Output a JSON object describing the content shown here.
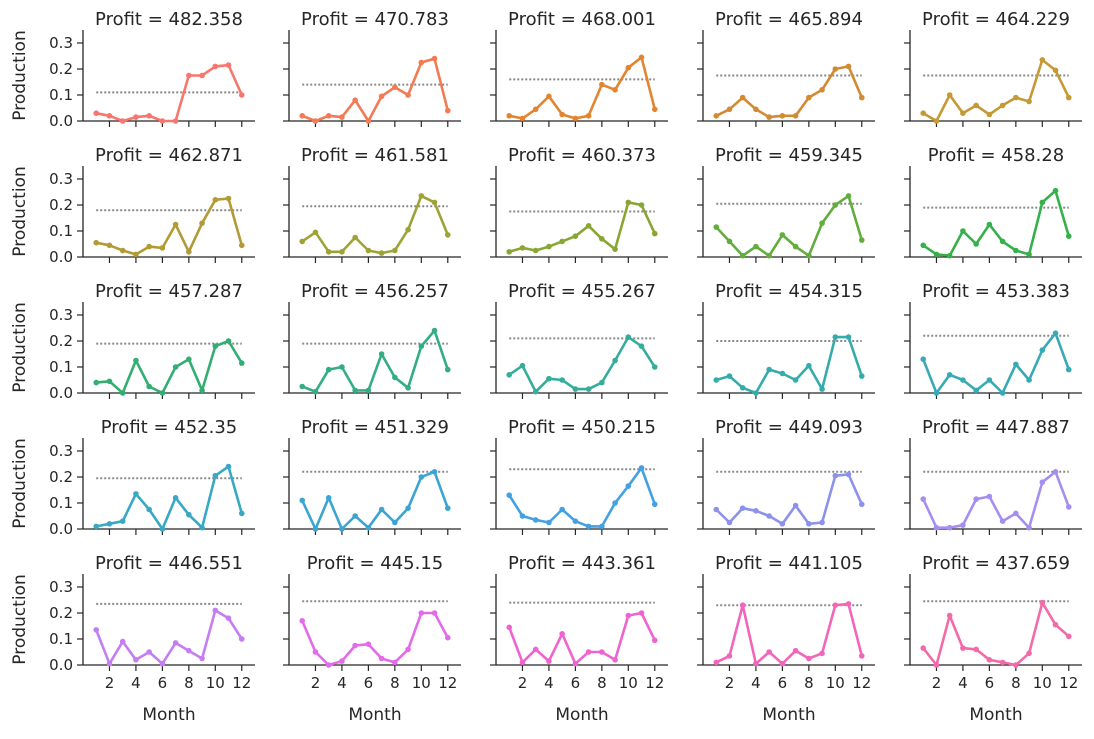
{
  "chart_data": {
    "type": "line",
    "xlabel": "Month",
    "ylabel": "Production",
    "title_prefix": "Profit = ",
    "xlim": [
      0,
      13
    ],
    "ylim": [
      0,
      0.35
    ],
    "xticks": [
      2,
      4,
      6,
      8,
      10,
      12
    ],
    "yticks": [
      0.0,
      0.1,
      0.2,
      0.3
    ],
    "ytick_labels": [
      "0.0",
      "0.1",
      "0.2",
      "0.3"
    ],
    "x": [
      1,
      2,
      3,
      4,
      5,
      6,
      7,
      8,
      9,
      10,
      11,
      12
    ],
    "reference_line_style": "dotted",
    "grid": false,
    "panels": [
      {
        "profit": "482.358",
        "color": "#f7766d",
        "ref": 0.11,
        "values": [
          0.03,
          0.02,
          0.0,
          0.015,
          0.02,
          0.0,
          0.0,
          0.175,
          0.175,
          0.21,
          0.215,
          0.1
        ]
      },
      {
        "profit": "470.783",
        "color": "#f27a54",
        "ref": 0.14,
        "values": [
          0.02,
          0.0,
          0.02,
          0.015,
          0.08,
          0.0,
          0.095,
          0.13,
          0.1,
          0.225,
          0.24,
          0.04
        ]
      },
      {
        "profit": "468.001",
        "color": "#e38530",
        "ref": 0.16,
        "values": [
          0.02,
          0.01,
          0.045,
          0.095,
          0.025,
          0.01,
          0.02,
          0.14,
          0.12,
          0.205,
          0.245,
          0.045
        ]
      },
      {
        "profit": "465.894",
        "color": "#d38a33",
        "ref": 0.175,
        "values": [
          0.02,
          0.045,
          0.09,
          0.045,
          0.015,
          0.02,
          0.02,
          0.09,
          0.12,
          0.2,
          0.21,
          0.09
        ]
      },
      {
        "profit": "464.229",
        "color": "#c59a36",
        "ref": 0.175,
        "values": [
          0.03,
          0.0,
          0.1,
          0.03,
          0.06,
          0.025,
          0.06,
          0.09,
          0.075,
          0.235,
          0.195,
          0.09
        ]
      },
      {
        "profit": "462.871",
        "color": "#b29b35",
        "ref": 0.18,
        "values": [
          0.055,
          0.045,
          0.025,
          0.01,
          0.04,
          0.035,
          0.125,
          0.02,
          0.13,
          0.22,
          0.225,
          0.045
        ]
      },
      {
        "profit": "461.581",
        "color": "#9fa335",
        "ref": 0.195,
        "values": [
          0.06,
          0.095,
          0.02,
          0.02,
          0.075,
          0.025,
          0.015,
          0.025,
          0.105,
          0.235,
          0.21,
          0.085
        ]
      },
      {
        "profit": "460.373",
        "color": "#89a635",
        "ref": 0.175,
        "values": [
          0.02,
          0.035,
          0.025,
          0.04,
          0.06,
          0.08,
          0.12,
          0.07,
          0.03,
          0.21,
          0.2,
          0.09
        ]
      },
      {
        "profit": "459.345",
        "color": "#62ad3c",
        "ref": 0.205,
        "values": [
          0.115,
          0.06,
          0.005,
          0.04,
          0.005,
          0.085,
          0.04,
          0.005,
          0.13,
          0.2,
          0.235,
          0.065
        ]
      },
      {
        "profit": "458.28",
        "color": "#35b04a",
        "ref": 0.19,
        "values": [
          0.045,
          0.01,
          0.005,
          0.1,
          0.05,
          0.125,
          0.06,
          0.025,
          0.01,
          0.21,
          0.255,
          0.08
        ]
      },
      {
        "profit": "457.287",
        "color": "#33ae72",
        "ref": 0.19,
        "values": [
          0.04,
          0.045,
          0.0,
          0.125,
          0.025,
          0.0,
          0.1,
          0.13,
          0.01,
          0.18,
          0.2,
          0.115
        ]
      },
      {
        "profit": "456.257",
        "color": "#33ad86",
        "ref": 0.19,
        "values": [
          0.025,
          0.005,
          0.09,
          0.1,
          0.01,
          0.01,
          0.15,
          0.06,
          0.02,
          0.18,
          0.24,
          0.09
        ]
      },
      {
        "profit": "455.267",
        "color": "#34ad9a",
        "ref": 0.21,
        "values": [
          0.07,
          0.105,
          0.005,
          0.055,
          0.05,
          0.015,
          0.015,
          0.04,
          0.125,
          0.215,
          0.18,
          0.1
        ]
      },
      {
        "profit": "454.315",
        "color": "#35acac",
        "ref": 0.2,
        "values": [
          0.05,
          0.065,
          0.02,
          0.0,
          0.09,
          0.075,
          0.05,
          0.105,
          0.015,
          0.215,
          0.215,
          0.065
        ]
      },
      {
        "profit": "453.383",
        "color": "#37aab5",
        "ref": 0.22,
        "values": [
          0.13,
          0.0,
          0.07,
          0.05,
          0.01,
          0.05,
          0.0,
          0.11,
          0.05,
          0.165,
          0.23,
          0.09
        ]
      },
      {
        "profit": "452.35",
        "color": "#38a8c5",
        "ref": 0.195,
        "values": [
          0.01,
          0.02,
          0.03,
          0.135,
          0.075,
          0.0,
          0.12,
          0.055,
          0.005,
          0.205,
          0.24,
          0.06
        ]
      },
      {
        "profit": "451.329",
        "color": "#3aa5d3",
        "ref": 0.22,
        "values": [
          0.11,
          0.0,
          0.12,
          0.0,
          0.05,
          0.005,
          0.075,
          0.025,
          0.08,
          0.2,
          0.22,
          0.08
        ]
      },
      {
        "profit": "450.215",
        "color": "#42a0e3",
        "ref": 0.23,
        "values": [
          0.13,
          0.05,
          0.035,
          0.025,
          0.075,
          0.03,
          0.01,
          0.01,
          0.1,
          0.165,
          0.235,
          0.095
        ]
      },
      {
        "profit": "449.093",
        "color": "#8c92ec",
        "ref": 0.22,
        "values": [
          0.075,
          0.025,
          0.08,
          0.07,
          0.05,
          0.02,
          0.09,
          0.02,
          0.025,
          0.205,
          0.21,
          0.095
        ]
      },
      {
        "profit": "447.887",
        "color": "#a68ef0",
        "ref": 0.22,
        "values": [
          0.115,
          0.005,
          0.005,
          0.015,
          0.115,
          0.125,
          0.03,
          0.06,
          0.005,
          0.18,
          0.22,
          0.085
        ]
      },
      {
        "profit": "446.551",
        "color": "#c57df2",
        "ref": 0.235,
        "values": [
          0.135,
          0.005,
          0.09,
          0.02,
          0.05,
          0.005,
          0.085,
          0.055,
          0.025,
          0.21,
          0.18,
          0.1
        ]
      },
      {
        "profit": "445.15",
        "color": "#e36be9",
        "ref": 0.245,
        "values": [
          0.17,
          0.05,
          0.0,
          0.015,
          0.075,
          0.08,
          0.025,
          0.01,
          0.06,
          0.2,
          0.2,
          0.105
        ]
      },
      {
        "profit": "443.361",
        "color": "#ef63d0",
        "ref": 0.24,
        "values": [
          0.145,
          0.01,
          0.06,
          0.015,
          0.12,
          0.005,
          0.05,
          0.05,
          0.02,
          0.19,
          0.2,
          0.095
        ]
      },
      {
        "profit": "441.105",
        "color": "#f166bb",
        "ref": 0.23,
        "values": [
          0.01,
          0.035,
          0.23,
          0.005,
          0.05,
          0.005,
          0.055,
          0.025,
          0.045,
          0.23,
          0.235,
          0.035
        ]
      },
      {
        "profit": "437.659",
        "color": "#f36aa8",
        "ref": 0.245,
        "values": [
          0.065,
          0.0,
          0.19,
          0.065,
          0.06,
          0.02,
          0.01,
          0.0,
          0.045,
          0.24,
          0.155,
          0.11
        ]
      }
    ]
  }
}
